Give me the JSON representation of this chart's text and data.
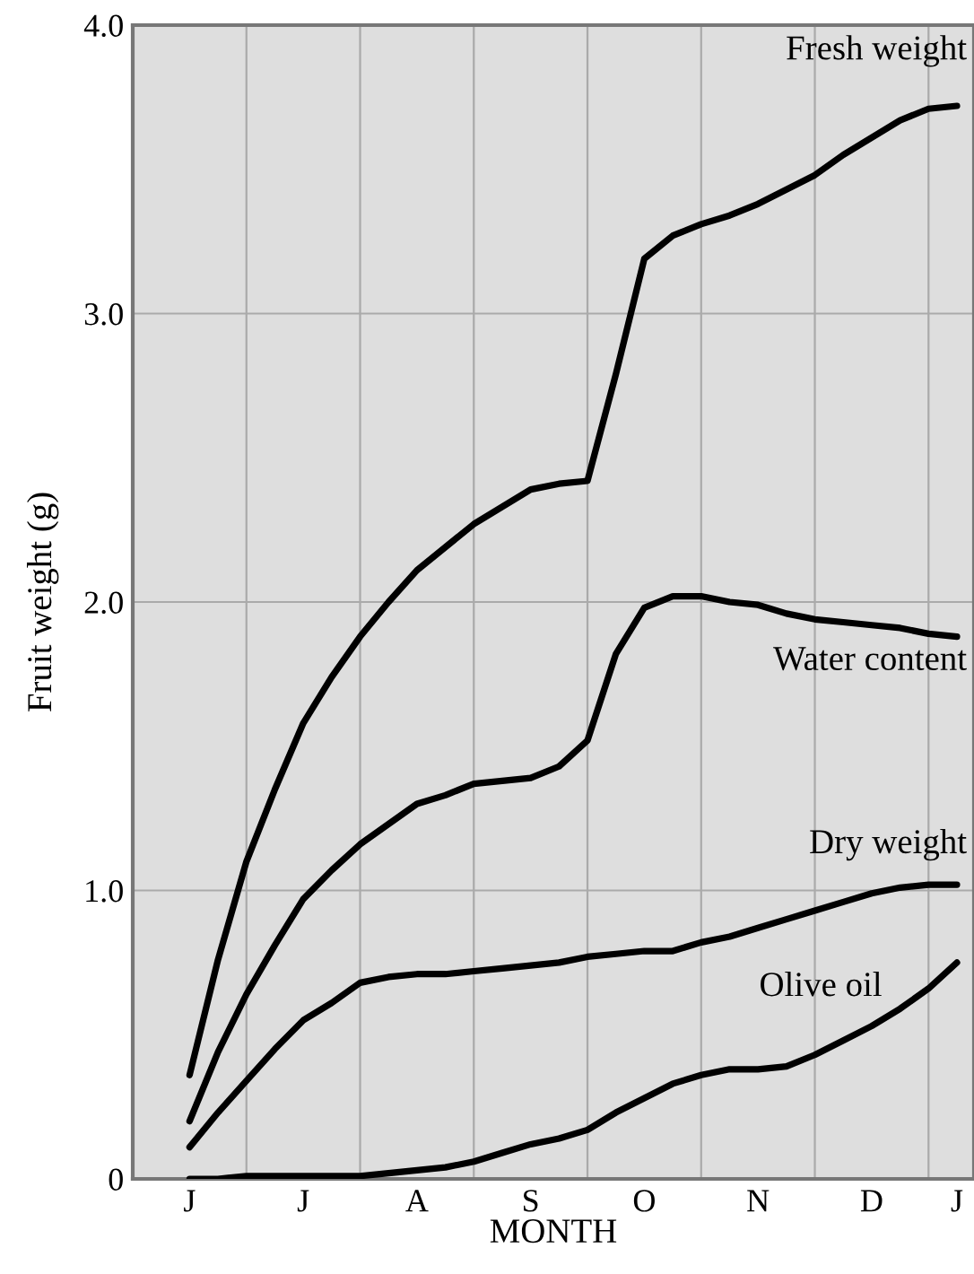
{
  "chart_data": {
    "type": "line",
    "xlabel": "MONTH",
    "ylabel": "Fruit weight (g)",
    "categories": [
      "J",
      null,
      null,
      null,
      "J",
      null,
      null,
      null,
      "A",
      null,
      null,
      null,
      "S",
      null,
      null,
      null,
      "O",
      null,
      null,
      null,
      "N",
      null,
      null,
      null,
      "D",
      null,
      null,
      "J"
    ],
    "ylim": [
      0,
      4.0
    ],
    "yticks": [
      0,
      {
        "value": 1,
        "label": "1.0"
      },
      {
        "value": 2,
        "label": "2.0"
      },
      {
        "value": 3,
        "label": "3.0"
      },
      {
        "value": 4,
        "label": "4.0"
      }
    ],
    "grid": true,
    "marker": "none",
    "line_style": "solid",
    "series": [
      {
        "color": "#000000",
        "values": [
          0.36,
          0.76,
          1.1,
          1.35,
          1.58,
          1.74,
          1.88,
          2.0,
          2.11,
          2.19,
          2.27,
          2.33,
          2.39,
          2.41,
          2.42,
          2.79,
          3.19,
          3.27,
          3.31,
          3.34,
          3.38,
          3.43,
          3.48,
          3.55,
          3.61,
          3.67,
          3.71,
          3.72
        ]
      },
      {
        "color": "#000000",
        "values": [
          0.2,
          0.44,
          0.64,
          0.81,
          0.97,
          1.07,
          1.16,
          1.23,
          1.3,
          1.33,
          1.37,
          1.38,
          1.39,
          1.43,
          1.52,
          1.82,
          1.98,
          2.02,
          2.02,
          2.0,
          1.99,
          1.96,
          1.94,
          1.93,
          1.92,
          1.91,
          1.89,
          1.88
        ]
      },
      {
        "color": "#000000",
        "values": [
          0.11,
          0.23,
          0.34,
          0.45,
          0.55,
          0.61,
          0.68,
          0.7,
          0.71,
          0.71,
          0.72,
          0.73,
          0.74,
          0.75,
          0.77,
          0.78,
          0.79,
          0.79,
          0.82,
          0.84,
          0.87,
          0.9,
          0.93,
          0.96,
          0.99,
          1.01,
          1.02,
          1.02
        ]
      },
      {
        "color": "#000000",
        "values": [
          0.0,
          0.0,
          0.01,
          0.01,
          0.01,
          0.01,
          0.01,
          0.02,
          0.03,
          0.04,
          0.06,
          0.09,
          0.12,
          0.14,
          0.17,
          0.23,
          0.28,
          0.33,
          0.36,
          0.38,
          0.38,
          0.39,
          0.43,
          0.48,
          0.53,
          0.59,
          0.66,
          0.75
        ]
      }
    ],
    "annotations": [
      "Fresh weight",
      "Water content",
      "Dry weight",
      "Olive oil"
    ]
  }
}
